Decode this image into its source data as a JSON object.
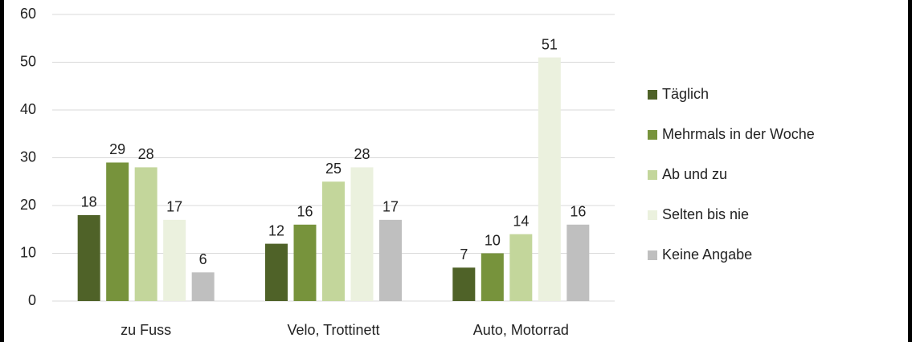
{
  "chart_data": {
    "type": "bar",
    "categories": [
      "zu Fuss",
      "Velo, Trottinett",
      "Auto, Motorrad"
    ],
    "series": [
      {
        "name": "Täglich",
        "color": "#4f6228",
        "values": [
          18,
          12,
          7
        ]
      },
      {
        "name": "Mehrmals in der Woche",
        "color": "#77933c",
        "values": [
          29,
          16,
          10
        ]
      },
      {
        "name": "Ab und zu",
        "color": "#c3d69b",
        "values": [
          28,
          25,
          14
        ]
      },
      {
        "name": "Selten bis nie",
        "color": "#ebf1de",
        "values": [
          17,
          28,
          51
        ]
      },
      {
        "name": "Keine Angabe",
        "color": "#bfbfbf",
        "values": [
          6,
          17,
          16
        ]
      }
    ],
    "ylim": [
      0,
      60
    ],
    "yticks": [
      0,
      10,
      20,
      30,
      40,
      50,
      60
    ],
    "grid": true,
    "legend": "right"
  }
}
